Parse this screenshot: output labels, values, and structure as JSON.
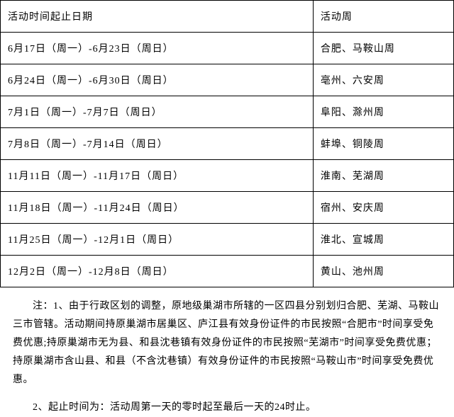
{
  "table": {
    "header": {
      "col1": "活动时间起止日期",
      "col2": "活动周"
    },
    "rows": [
      {
        "dates": "6月17日（周一）-6月23日（周日）",
        "week": "合肥、马鞍山周"
      },
      {
        "dates": "6月24日（周一）-6月30日（周日）",
        "week": "亳州、六安周"
      },
      {
        "dates": "7月1日（周一）-7月7日（周日）",
        "week": "阜阳、滁州周"
      },
      {
        "dates": "7月8日（周一）-7月14日（周日）",
        "week": "蚌埠、铜陵周"
      },
      {
        "dates": "11月11日（周一）-11月17日（周日）",
        "week": "淮南、芜湖周"
      },
      {
        "dates": "11月18日（周一）-11月24日（周日）",
        "week": "宿州、安庆周"
      },
      {
        "dates": "11月25日（周一）-12月1日（周日）",
        "week": "淮北、宣城周"
      },
      {
        "dates": "12月2日（周一）-12月8日（周日）",
        "week": "黄山、池州周"
      }
    ]
  },
  "notes": {
    "note1": "注：1、由于行政区划的调整，原地级巢湖市所辖的一区四县分别划归合肥、芜湖、马鞍山三市管辖。活动期间持原巢湖市居巢区、庐江县有效身份证件的市民按照“合肥市”时间享受免费优惠;持原巢湖市无为县、和县沈巷镇有效身份证件的市民按照“芜湖市”时间享受免费优惠；持原巢湖市含山县、和县（不含沈巷镇）有效身份证件的市民按照“马鞍山市”时间享受免费优惠。",
    "note2": "2、起止时间为：活动周第一天的零时起至最后一天的24时止。"
  },
  "style": {
    "border_color": "#000000",
    "text_color": "#000000",
    "background": "#ffffff",
    "table_font_size": 14,
    "notes_font_size": 14,
    "left_col_width_pct": 69,
    "right_col_width_pct": 31
  }
}
